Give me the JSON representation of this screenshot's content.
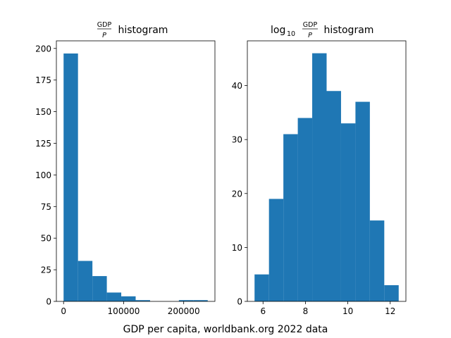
{
  "figure": {
    "suptitle": "GDP per capita, worldbank.org 2022 data"
  },
  "chart_data": [
    {
      "type": "bar",
      "kind": "histogram",
      "title": {
        "frac_num": "GDP",
        "frac_den": "P",
        "suffix": " histogram"
      },
      "bin_edges": [
        0,
        24000,
        48000,
        72000,
        96000,
        120000,
        144000,
        168000,
        192000,
        216000,
        240000
      ],
      "counts": [
        196,
        32,
        20,
        7,
        4,
        1,
        0,
        0,
        1,
        1
      ],
      "xlim": [
        -12000,
        252000
      ],
      "ylim": [
        0,
        206
      ],
      "xticks": [
        0,
        100000,
        200000
      ],
      "xtick_labels": [
        "0",
        "100000",
        "200000"
      ],
      "yticks": [
        0,
        25,
        50,
        75,
        100,
        125,
        150,
        175,
        200
      ],
      "ytick_labels": [
        "0",
        "25",
        "50",
        "75",
        "100",
        "125",
        "150",
        "175",
        "200"
      ],
      "color": "#1f77b4"
    },
    {
      "type": "bar",
      "kind": "histogram",
      "title": {
        "prefix": "log",
        "subscript": "10",
        "frac_num": "GDP",
        "frac_den": "P",
        "suffix": " histogram"
      },
      "bin_edges": [
        5.6,
        6.28,
        6.96,
        7.64,
        8.32,
        9.0,
        9.68,
        10.36,
        11.04,
        11.72,
        12.4
      ],
      "counts": [
        5,
        19,
        31,
        34,
        46,
        39,
        33,
        37,
        15,
        3
      ],
      "xlim": [
        5.26,
        12.74
      ],
      "ylim": [
        0,
        48.3
      ],
      "xticks": [
        6,
        8,
        10,
        12
      ],
      "xtick_labels": [
        "6",
        "8",
        "10",
        "12"
      ],
      "yticks": [
        0,
        10,
        20,
        30,
        40
      ],
      "ytick_labels": [
        "0",
        "10",
        "20",
        "30",
        "40"
      ],
      "color": "#1f77b4"
    }
  ]
}
